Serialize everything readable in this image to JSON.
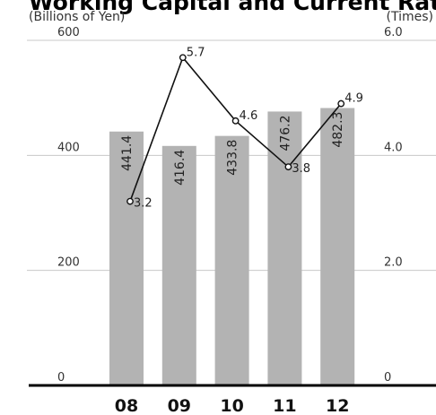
{
  "chart_data": {
    "type": "bar",
    "title": "Working Capital and Current Ratio",
    "categories": [
      "08",
      "09",
      "10",
      "11",
      "12"
    ],
    "series": [
      {
        "name": "Working Capital",
        "type": "bar",
        "axis": "left",
        "values": [
          441.4,
          416.4,
          433.8,
          476.2,
          482.3
        ],
        "labels": [
          "441.4",
          "416.4",
          "433.8",
          "476.2",
          "482.3"
        ]
      },
      {
        "name": "Current Ratio",
        "type": "line",
        "axis": "right",
        "values": [
          3.2,
          5.7,
          4.6,
          3.8,
          4.9
        ],
        "labels": [
          "3.2",
          "5.7",
          "4.6",
          "3.8",
          "4.9"
        ]
      }
    ],
    "left_axis": {
      "unit": "(Billions of Yen)",
      "ylim": [
        0,
        600
      ],
      "ticks": [
        "0",
        "200",
        "400",
        "600"
      ]
    },
    "right_axis": {
      "unit": "(Times)",
      "ylim": [
        0,
        6
      ],
      "ticks": [
        "0",
        "2.0",
        "4.0",
        "6.0"
      ]
    },
    "grid": true,
    "colors": {
      "bar": "#b3b3b3",
      "line": "#111111",
      "grid": "#c8c8c8",
      "baseline": "#000000"
    }
  }
}
